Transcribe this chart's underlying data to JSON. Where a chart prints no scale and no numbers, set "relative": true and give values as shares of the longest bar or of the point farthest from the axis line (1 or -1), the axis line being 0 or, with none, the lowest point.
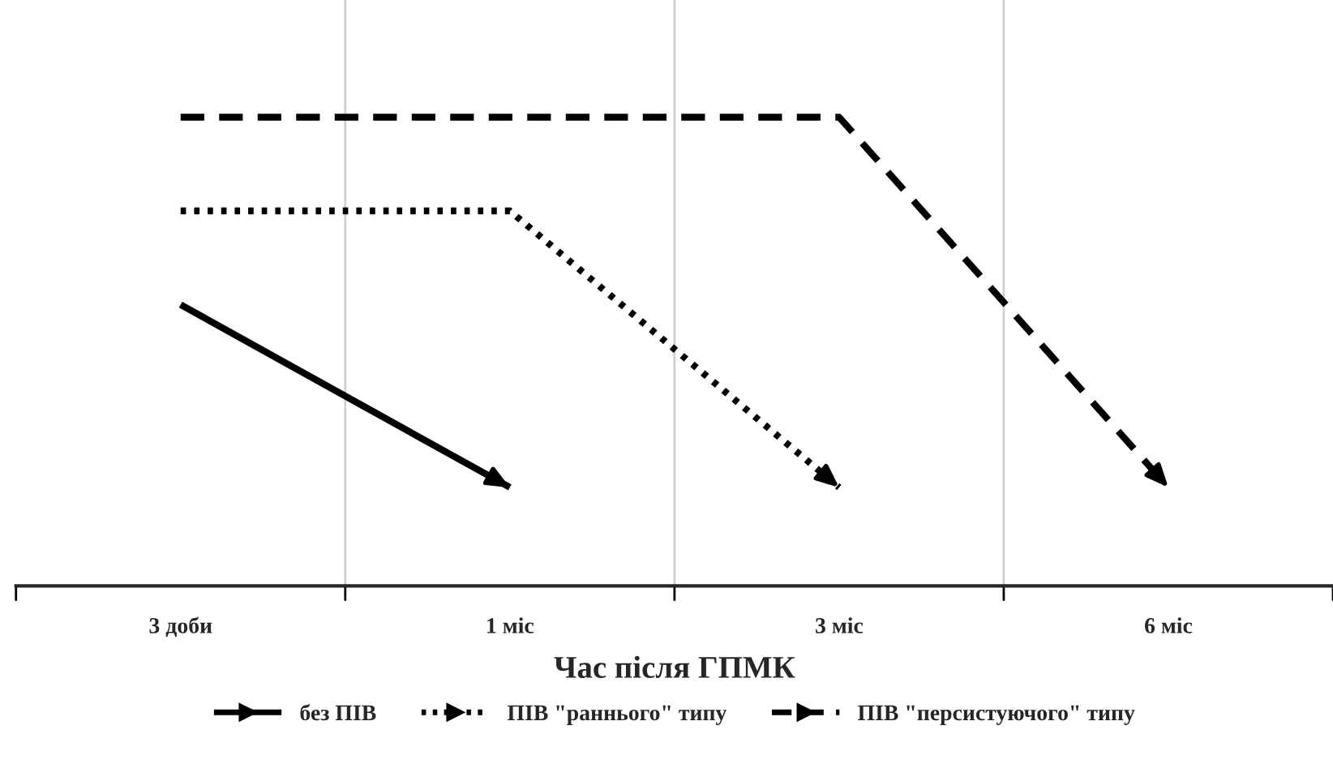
{
  "chart_data": {
    "type": "line",
    "xlabel": "Час після ГПМК",
    "categories": [
      "3 доби",
      "1 міс",
      "3 міс",
      "6 міс"
    ],
    "relative": true,
    "grid": "x",
    "legend": "bottom",
    "marker": "none",
    "series": [
      {
        "name": "без ПІВ",
        "color": "#000000",
        "line_style": "solid",
        "values": [
          0.6,
          0.21,
          null,
          null
        ]
      },
      {
        "name": "ПІВ \"раннього\" типу",
        "color": "#000000",
        "line_style": "dotted",
        "values": [
          0.8,
          0.8,
          0.21,
          null
        ]
      },
      {
        "name": "ПІВ \"персистуючого\" типу",
        "color": "#000000",
        "line_style": "dashed",
        "values": [
          1,
          1,
          1,
          0.21
        ]
      }
    ]
  }
}
